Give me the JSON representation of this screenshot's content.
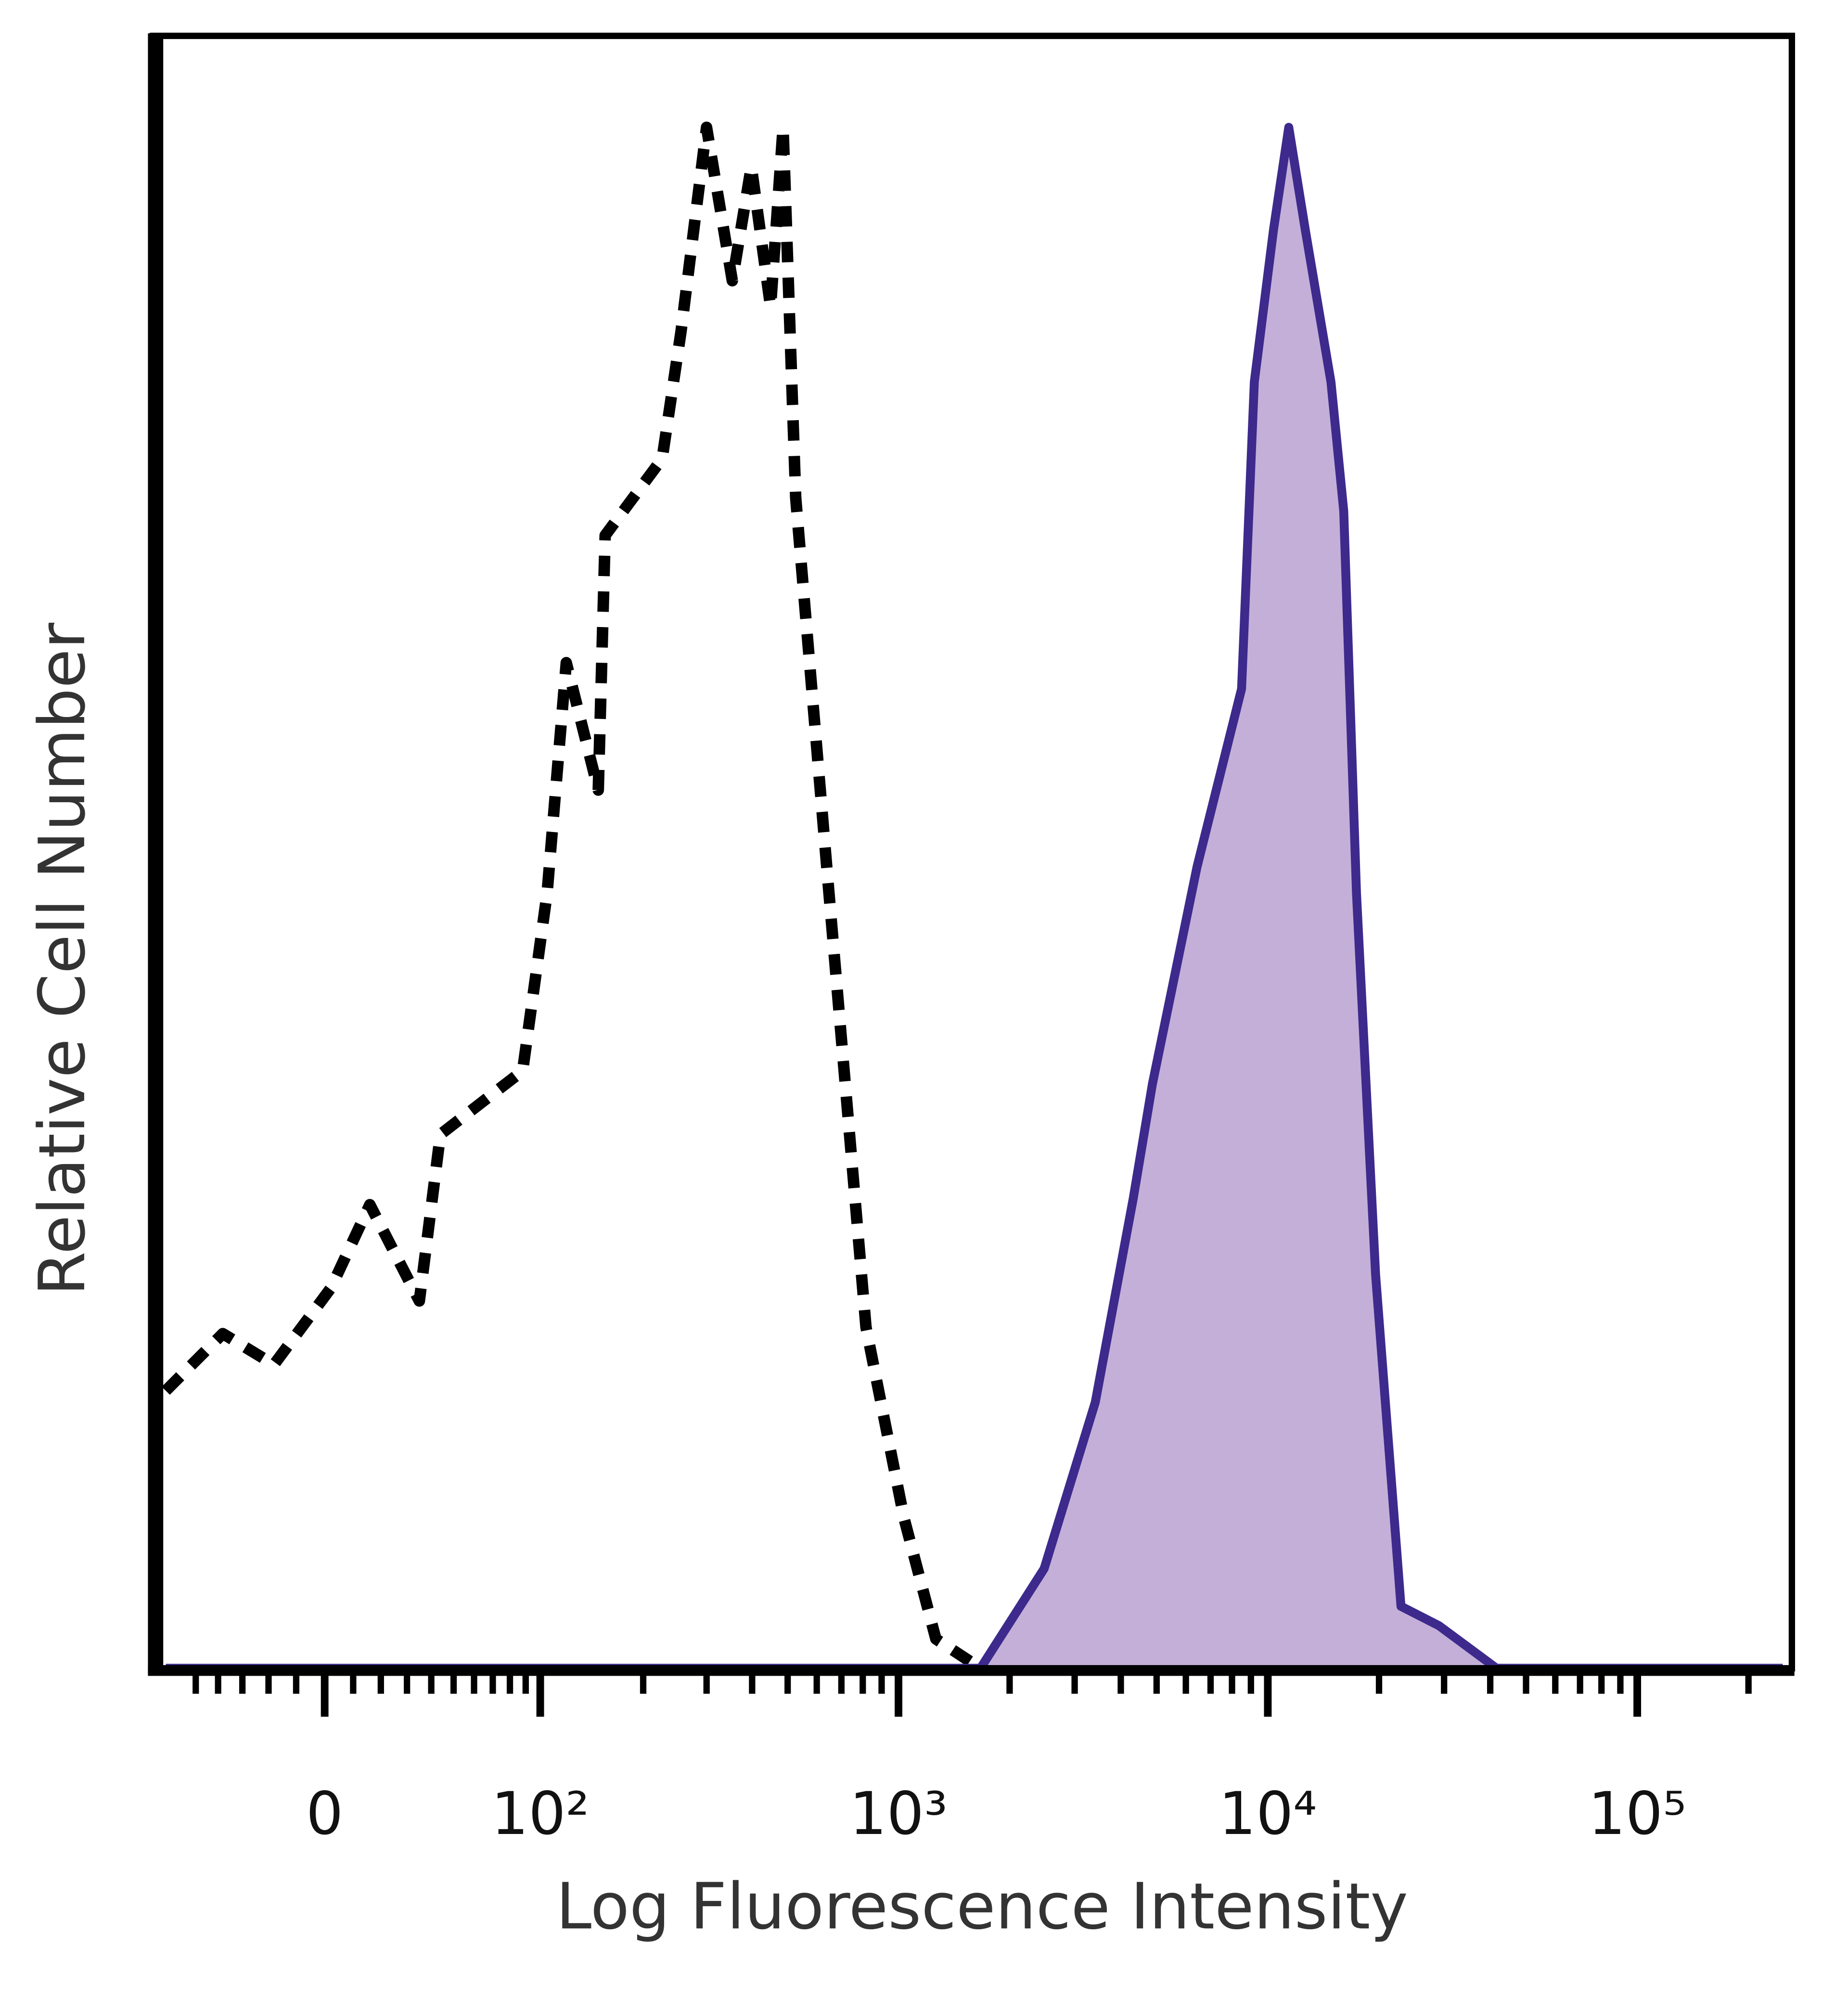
{
  "chart_data": {
    "type": "line",
    "xlabel": "Log Fluorescence Intensity",
    "ylabel": "Relative Cell Number",
    "xscale": "asinh",
    "xlim": [
      -72,
      262143
    ],
    "ylim": [
      0,
      100
    ],
    "xticks": [
      0,
      {
        "value": 100,
        "label": "10²"
      },
      {
        "value": 1000,
        "label": "10³"
      },
      {
        "value": 10000,
        "label": "10⁴"
      },
      {
        "value": 100000,
        "label": "10⁵"
      }
    ],
    "xminorticks": [
      -50,
      -40,
      -30,
      -20,
      -10,
      10,
      20,
      30,
      40,
      50,
      60,
      70,
      80,
      90,
      200,
      300,
      400,
      500,
      600,
      700,
      800,
      900,
      2000,
      3000,
      4000,
      5000,
      6000,
      7000,
      8000,
      9000,
      20000,
      30000,
      40000,
      50000,
      60000,
      70000,
      80000,
      90000,
      200000
    ],
    "series": [
      {
        "color": "#000000",
        "line_style": "dashed",
        "x": [
          -65,
          -38,
          -18,
          2.2,
          16,
          35,
          44,
          88,
          105,
          120,
          149,
          156,
          226,
          255,
          300,
          353,
          398,
          449,
          486,
          526,
          643,
          816,
          1035,
          1263,
          1668
        ],
        "values": [
          17.0,
          20.5,
          18.6,
          23.3,
          28.4,
          22.5,
          32.7,
          36.6,
          47.5,
          61.6,
          53.8,
          69.4,
          74.1,
          81.9,
          94.4,
          85.0,
          92.0,
          83.4,
          94.4,
          71.7,
          48.3,
          20.9,
          9.2,
          1.8,
          0
        ]
      },
      {
        "color": "#3d2a8c",
        "fill": "#c4afd8",
        "line_style": "solid",
        "x": [
          -65,
          1668,
          2481,
          3411,
          4324,
          4871,
          6434,
          8490,
          9195,
          10360,
          11396,
          12639,
          14823,
          16050,
          17382,
          19578,
          22932,
          29086,
          41580,
          247464
        ],
        "values": [
          0,
          0,
          6.1,
          16.3,
          28.8,
          35.8,
          49.1,
          60.0,
          78.8,
          88.1,
          94.4,
          88.1,
          78.8,
          70.9,
          47.5,
          24.1,
          3.8,
          2.6,
          0,
          0
        ]
      }
    ]
  }
}
